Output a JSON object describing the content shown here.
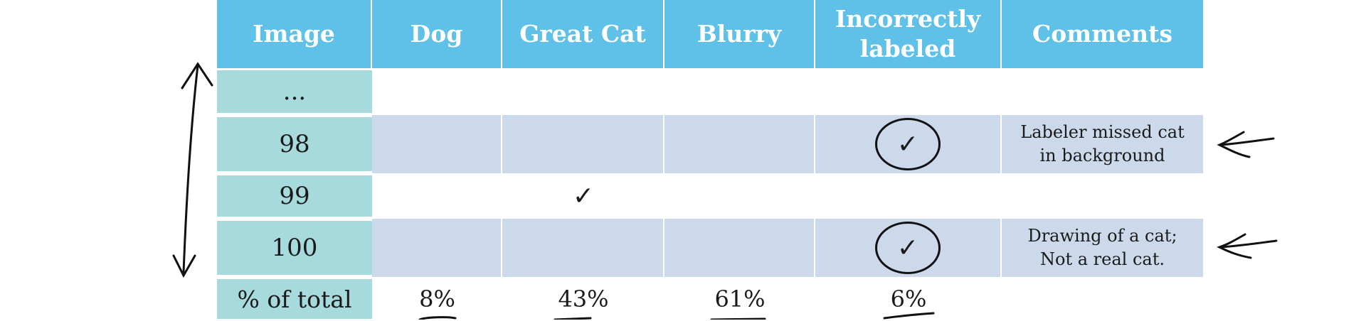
{
  "table": {
    "headers": [
      "Image",
      "Dog",
      "Great Cat",
      "Blurry",
      "Incorrectly labeled",
      "Comments"
    ],
    "rows": [
      {
        "image": "...",
        "dog": "",
        "great_cat": "",
        "blurry": "",
        "incorrectly_labeled": "",
        "comments": ""
      },
      {
        "image": "98",
        "dog": "",
        "great_cat": "",
        "blurry": "",
        "incorrectly_labeled": "✓",
        "incorrectly_labeled_circled": true,
        "comments": "Labeler missed cat in background"
      },
      {
        "image": "99",
        "dog": "",
        "great_cat": "✓",
        "blurry": "",
        "incorrectly_labeled": "",
        "comments": ""
      },
      {
        "image": "100",
        "dog": "",
        "great_cat": "",
        "blurry": "",
        "incorrectly_labeled": "✓",
        "incorrectly_labeled_circled": true,
        "comments": "Drawing of a cat; Not a real cat."
      }
    ],
    "footer": {
      "label": "% of total",
      "dog": "8%",
      "great_cat": "43%",
      "blurry": "61%",
      "incorrectly_labeled": "6%"
    }
  },
  "colors": {
    "header": "#5fc0e8",
    "index_column": "#a6dadc",
    "shaded_row": "#cbd9eb"
  }
}
